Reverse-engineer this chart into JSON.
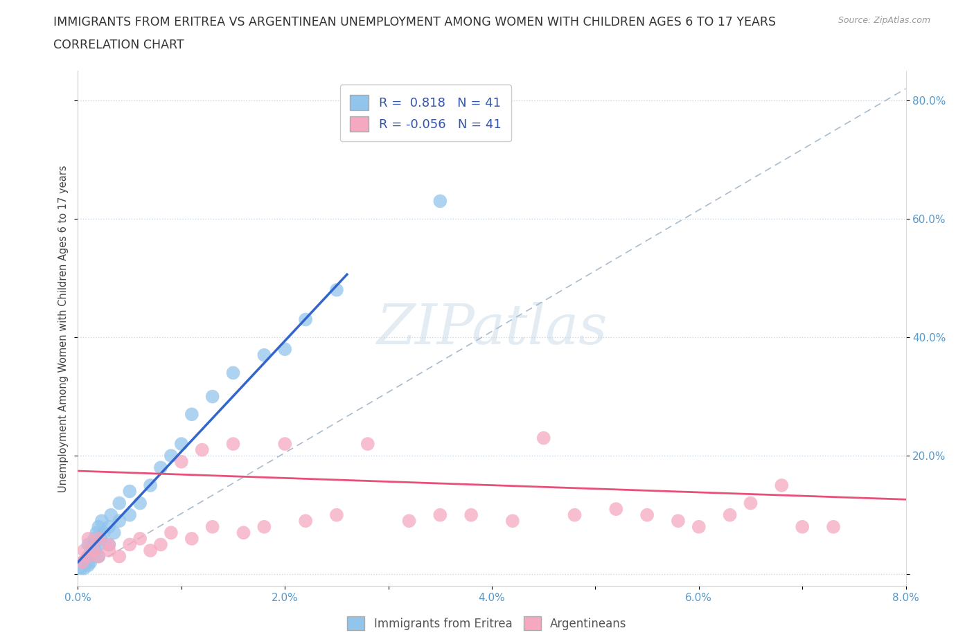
{
  "title_line1": "IMMIGRANTS FROM ERITREA VS ARGENTINEAN UNEMPLOYMENT AMONG WOMEN WITH CHILDREN AGES 6 TO 17 YEARS",
  "title_line2": "CORRELATION CHART",
  "source_text": "Source: ZipAtlas.com",
  "ylabel": "Unemployment Among Women with Children Ages 6 to 17 years",
  "xlim": [
    0.0,
    0.08
  ],
  "ylim": [
    -0.02,
    0.85
  ],
  "xticks": [
    0.0,
    0.01,
    0.02,
    0.03,
    0.04,
    0.05,
    0.06,
    0.07,
    0.08
  ],
  "xticklabels": [
    "0.0%",
    "",
    "2.0%",
    "",
    "4.0%",
    "",
    "6.0%",
    "",
    "8.0%"
  ],
  "yticks_left": [
    0.0,
    0.2,
    0.4,
    0.6,
    0.8
  ],
  "yticklabels_left": [
    "",
    "",
    "",
    "",
    ""
  ],
  "yticks_right": [
    0.0,
    0.2,
    0.4,
    0.6,
    0.8
  ],
  "yticklabels_right": [
    "",
    "20.0%",
    "40.0%",
    "60.0%",
    "80.0%"
  ],
  "R_blue": 0.818,
  "N_blue": 41,
  "R_pink": -0.056,
  "N_pink": 41,
  "blue_color": "#92C5EC",
  "pink_color": "#F5A8C0",
  "blue_line_color": "#3366CC",
  "pink_line_color": "#E8507A",
  "grid_color": "#C8D8E8",
  "background_color": "#FFFFFF",
  "watermark_text": "ZIPatlas",
  "blue_scatter_x": [
    0.0003,
    0.0005,
    0.0006,
    0.0008,
    0.001,
    0.001,
    0.001,
    0.0012,
    0.0013,
    0.0015,
    0.0015,
    0.0016,
    0.0017,
    0.0018,
    0.002,
    0.002,
    0.002,
    0.0022,
    0.0023,
    0.0025,
    0.003,
    0.003,
    0.0032,
    0.0035,
    0.004,
    0.004,
    0.005,
    0.005,
    0.006,
    0.007,
    0.008,
    0.009,
    0.01,
    0.011,
    0.013,
    0.015,
    0.018,
    0.02,
    0.022,
    0.025,
    0.035
  ],
  "blue_scatter_y": [
    0.01,
    0.02,
    0.01,
    0.02,
    0.015,
    0.03,
    0.05,
    0.02,
    0.04,
    0.03,
    0.05,
    0.06,
    0.04,
    0.07,
    0.03,
    0.05,
    0.08,
    0.06,
    0.09,
    0.07,
    0.05,
    0.08,
    0.1,
    0.07,
    0.09,
    0.12,
    0.1,
    0.14,
    0.12,
    0.15,
    0.18,
    0.2,
    0.22,
    0.27,
    0.3,
    0.34,
    0.37,
    0.38,
    0.43,
    0.48,
    0.63
  ],
  "pink_scatter_x": [
    0.0004,
    0.0006,
    0.001,
    0.001,
    0.0015,
    0.002,
    0.002,
    0.003,
    0.003,
    0.004,
    0.005,
    0.006,
    0.007,
    0.008,
    0.009,
    0.01,
    0.011,
    0.012,
    0.013,
    0.015,
    0.016,
    0.018,
    0.02,
    0.022,
    0.025,
    0.028,
    0.032,
    0.035,
    0.038,
    0.042,
    0.045,
    0.048,
    0.052,
    0.055,
    0.058,
    0.06,
    0.063,
    0.065,
    0.068,
    0.07,
    0.073
  ],
  "pink_scatter_y": [
    0.02,
    0.04,
    0.03,
    0.06,
    0.04,
    0.03,
    0.06,
    0.04,
    0.05,
    0.03,
    0.05,
    0.06,
    0.04,
    0.05,
    0.07,
    0.19,
    0.06,
    0.21,
    0.08,
    0.22,
    0.07,
    0.08,
    0.22,
    0.09,
    0.1,
    0.22,
    0.09,
    0.1,
    0.1,
    0.09,
    0.23,
    0.1,
    0.11,
    0.1,
    0.09,
    0.08,
    0.1,
    0.12,
    0.15,
    0.08,
    0.08
  ],
  "title_fontsize": 12.5,
  "axis_label_fontsize": 10.5,
  "tick_fontsize": 11,
  "legend_fontsize": 13,
  "diag_line_color": "#AABBCC"
}
